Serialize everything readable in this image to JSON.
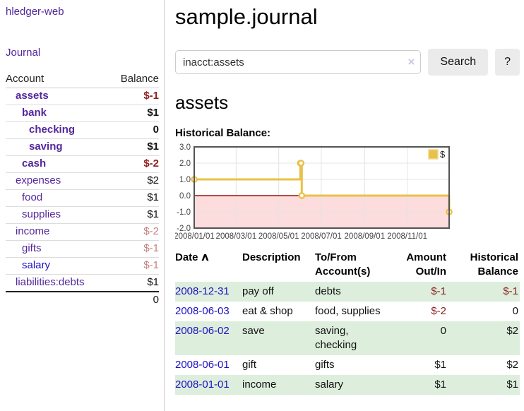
{
  "app": {
    "title": "hledger-web"
  },
  "sidebar": {
    "journal_link": "Journal",
    "accounts_table": {
      "headers": [
        "Account",
        "Balance"
      ],
      "rows": [
        {
          "account": "assets",
          "balance": "$-1",
          "depth": 1,
          "strong": true,
          "tone": "neg",
          "link": "purple"
        },
        {
          "account": "bank",
          "balance": "$1",
          "depth": 2,
          "strong": true,
          "tone": "",
          "link": "purple"
        },
        {
          "account": "checking",
          "balance": "0",
          "depth": 3,
          "strong": true,
          "tone": "",
          "link": "purple"
        },
        {
          "account": "saving",
          "balance": "$1",
          "depth": 3,
          "strong": true,
          "tone": "",
          "link": "purple"
        },
        {
          "account": "cash",
          "balance": "$-2",
          "depth": 2,
          "strong": true,
          "tone": "neg",
          "link": "purple"
        },
        {
          "account": "expenses",
          "balance": "$2",
          "depth": 1,
          "strong": false,
          "tone": "",
          "link": "purple"
        },
        {
          "account": "food",
          "balance": "$1",
          "depth": 2,
          "strong": false,
          "tone": "",
          "link": "purple"
        },
        {
          "account": "supplies",
          "balance": "$1",
          "depth": 2,
          "strong": false,
          "tone": "",
          "link": "purple"
        },
        {
          "account": "income",
          "balance": "$-2",
          "depth": 1,
          "strong": false,
          "tone": "negmuted",
          "link": "purple"
        },
        {
          "account": "gifts",
          "balance": "$-1",
          "depth": 2,
          "strong": false,
          "tone": "negmuted",
          "link": "purple"
        },
        {
          "account": "salary",
          "balance": "$-1",
          "depth": 2,
          "strong": false,
          "tone": "negmuted",
          "link": "blue"
        },
        {
          "account": "liabilities:debts",
          "balance": "$1",
          "depth": 1,
          "strong": false,
          "tone": "",
          "link": "purple"
        }
      ],
      "total": "0"
    }
  },
  "main": {
    "title": "sample.journal",
    "search": {
      "value": "inacct:assets",
      "clear_icon": "×",
      "button_label": "Search",
      "help_label": "?"
    },
    "account_heading": "assets",
    "chart_label": "Historical Balance:"
  },
  "chart_data": {
    "type": "line",
    "title": "Historical Balance:",
    "step": "after",
    "x": [
      "2008-01-01",
      "2008-06-01",
      "2008-06-02",
      "2008-06-03",
      "2008-12-31"
    ],
    "values": [
      1,
      2,
      2,
      0,
      -1
    ],
    "series_label": "$",
    "xlim": [
      "2008-01-01",
      "2008-12-31"
    ],
    "ylim": [
      -2,
      3
    ],
    "yticks": [
      -2.0,
      -1.0,
      0.0,
      1.0,
      2.0,
      3.0
    ],
    "xticks": [
      "2008/01/01",
      "2008/03/01",
      "2008/05/01",
      "2008/07/01",
      "2008/09/01",
      "2008/11/01"
    ],
    "grid": true,
    "legend_position": "top-right",
    "colors": {
      "line": "#e8c14a",
      "marker_fill": "#ffffff",
      "negative_region_fill": "#fcdcdc",
      "zero_line": "#991111",
      "grid_line": "#e4e4e4",
      "plot_border": "#545454",
      "tick_text": "#444444",
      "legend_box_border": "#efd98f"
    }
  },
  "register": {
    "headers": {
      "date": "Date",
      "description": "Description",
      "accounts": "To/From Account(s)",
      "amount": "Amount Out/In",
      "balance": "Historical Balance"
    },
    "sort_icon": "∧",
    "rows": [
      {
        "date": "2008-12-31",
        "description": "pay off",
        "accounts": "debts",
        "amount": "$-1",
        "amount_tone": "neg",
        "balance": "$-1",
        "balance_tone": "neg",
        "shaded": true
      },
      {
        "date": "2008-06-03",
        "description": "eat & shop",
        "accounts": "food, supplies",
        "amount": "$-2",
        "amount_tone": "neg",
        "balance": "0",
        "balance_tone": "",
        "shaded": false
      },
      {
        "date": "2008-06-02",
        "description": "save",
        "accounts": "saving, checking",
        "amount": "0",
        "amount_tone": "",
        "balance": "$2",
        "balance_tone": "",
        "shaded": true
      },
      {
        "date": "2008-06-01",
        "description": "gift",
        "accounts": "gifts",
        "amount": "$1",
        "amount_tone": "",
        "balance": "$2",
        "balance_tone": "",
        "shaded": false
      },
      {
        "date": "2008-01-01",
        "description": "income",
        "accounts": "salary",
        "amount": "$1",
        "amount_tone": "",
        "balance": "$1",
        "balance_tone": "",
        "shaded": true
      }
    ]
  }
}
